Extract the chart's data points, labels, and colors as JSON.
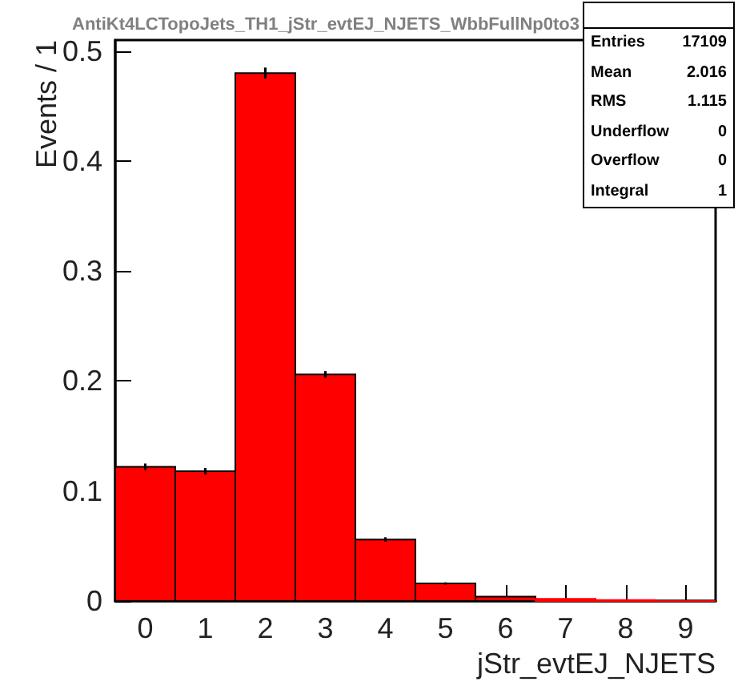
{
  "chart_data": {
    "type": "histogram",
    "title": "AntiKt4LCTopoJets_TH1_jStr_evtEJ_NJETS_WbbFullNp0to3",
    "xlabel": "jStr_evtEJ_NJETS",
    "ylabel": "Events / 1",
    "bins": [
      -0.5,
      0.5,
      1.5,
      2.5,
      3.5,
      4.5,
      5.5,
      6.5,
      7.5,
      8.5,
      9.5
    ],
    "values": [
      0.122,
      0.118,
      0.48,
      0.206,
      0.056,
      0.016,
      0.004,
      0.002,
      0.001,
      0
    ],
    "errors": [
      0.003,
      0.003,
      0.005,
      0.003,
      0.002,
      0.001,
      null,
      null,
      null,
      null
    ],
    "color": "#ff0000",
    "xlim": [
      -0.5,
      9.5
    ],
    "xticks": [
      0,
      1,
      2,
      3,
      4,
      5,
      6,
      7,
      8,
      9
    ],
    "ylim": [
      0,
      0.51
    ],
    "yticks": [
      0,
      0.1,
      0.2,
      0.3,
      0.4,
      0.5
    ],
    "grid": false,
    "annotations": [
      "Entries 17109",
      "Mean 2.016",
      "RMS 1.115",
      "Underflow 0",
      "Overflow 0",
      "Integral 1"
    ]
  }
}
